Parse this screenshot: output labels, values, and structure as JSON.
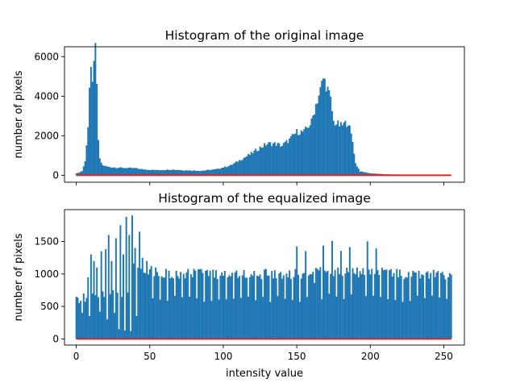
{
  "chart_data": [
    {
      "type": "bar",
      "title": "Histogram of the original image",
      "xlabel": "",
      "ylabel": "number of pixels",
      "xlim": [
        -8,
        264
      ],
      "ylim": [
        -350,
        6500
      ],
      "x_ticks": [
        0,
        50,
        100,
        150,
        200,
        250
      ],
      "x_tick_labels_shown": false,
      "y_ticks": [
        0,
        2000,
        4000,
        6000
      ],
      "y_tick_labels": [
        "0",
        "2000",
        "4000",
        "6000"
      ],
      "bin_width": 1,
      "bar_color": "#1f77b4",
      "profile": [
        [
          0,
          100
        ],
        [
          2,
          140
        ],
        [
          4,
          220
        ],
        [
          6,
          700
        ],
        [
          8,
          2500
        ],
        [
          9,
          4400
        ],
        [
          10,
          5100
        ],
        [
          11,
          4500
        ],
        [
          12,
          6100
        ],
        [
          13,
          6200
        ],
        [
          14,
          4400
        ],
        [
          15,
          1800
        ],
        [
          16,
          800
        ],
        [
          18,
          500
        ],
        [
          22,
          420
        ],
        [
          30,
          380
        ],
        [
          40,
          360
        ],
        [
          45,
          300
        ],
        [
          55,
          260
        ],
        [
          65,
          290
        ],
        [
          75,
          250
        ],
        [
          85,
          230
        ],
        [
          95,
          300
        ],
        [
          105,
          500
        ],
        [
          112,
          800
        ],
        [
          118,
          1050
        ],
        [
          125,
          1400
        ],
        [
          130,
          1600
        ],
        [
          135,
          1600
        ],
        [
          140,
          1500
        ],
        [
          145,
          1800
        ],
        [
          150,
          2200
        ],
        [
          155,
          2200
        ],
        [
          160,
          2700
        ],
        [
          163,
          3600
        ],
        [
          166,
          4300
        ],
        [
          168,
          4900
        ],
        [
          170,
          4600
        ],
        [
          173,
          3800
        ],
        [
          175,
          2700
        ],
        [
          180,
          2500
        ],
        [
          185,
          2700
        ],
        [
          188,
          1700
        ],
        [
          190,
          600
        ],
        [
          193,
          200
        ],
        [
          200,
          100
        ],
        [
          210,
          50
        ],
        [
          230,
          25
        ],
        [
          255,
          15
        ]
      ],
      "cdf_line": {
        "color": "#d62728",
        "from": 0,
        "to": 255,
        "y": 0
      }
    },
    {
      "type": "bar",
      "title": "Histogram of the equalized image",
      "xlabel": "intensity value",
      "ylabel": "number of pixels",
      "xlim": [
        -8,
        264
      ],
      "ylim": [
        -95,
        1990
      ],
      "x_ticks": [
        0,
        50,
        100,
        150,
        200,
        250
      ],
      "x_tick_labels": [
        "0",
        "50",
        "100",
        "150",
        "200",
        "250"
      ],
      "y_ticks": [
        0,
        500,
        1000,
        1500
      ],
      "y_tick_labels": [
        "0",
        "500",
        "1000",
        "1500"
      ],
      "bin_width": 1,
      "bar_color": "#1f77b4",
      "profile": [
        [
          0,
          650
        ],
        [
          5,
          600
        ],
        [
          10,
          650
        ],
        [
          15,
          650
        ],
        [
          20,
          700
        ],
        [
          25,
          700
        ],
        [
          30,
          700
        ],
        [
          35,
          700
        ],
        [
          40,
          1200
        ],
        [
          45,
          1100
        ],
        [
          50,
          1050
        ],
        [
          60,
          1000
        ],
        [
          80,
          1000
        ],
        [
          100,
          1000
        ],
        [
          120,
          1000
        ],
        [
          140,
          1000
        ],
        [
          160,
          1000
        ],
        [
          170,
          1050
        ],
        [
          180,
          1050
        ],
        [
          200,
          1050
        ],
        [
          220,
          1000
        ],
        [
          240,
          1000
        ],
        [
          255,
          950
        ]
      ],
      "spikes": [
        [
          2,
          550
        ],
        [
          5,
          700
        ],
        [
          8,
          950
        ],
        [
          10,
          1300
        ],
        [
          12,
          1200
        ],
        [
          14,
          1100
        ],
        [
          17,
          1350
        ],
        [
          20,
          1380
        ],
        [
          22,
          1600
        ],
        [
          24,
          1200
        ],
        [
          27,
          1550
        ],
        [
          30,
          1750
        ],
        [
          32,
          1300
        ],
        [
          34,
          1880
        ],
        [
          36,
          1600
        ],
        [
          38,
          1900
        ],
        [
          40,
          1400
        ],
        [
          43,
          1650
        ],
        [
          45,
          1250
        ],
        [
          48,
          1200
        ]
      ],
      "gaps": [
        [
          4,
          400
        ],
        [
          9,
          350
        ],
        [
          16,
          420
        ],
        [
          21,
          300
        ],
        [
          26,
          400
        ],
        [
          29,
          150
        ],
        [
          33,
          130
        ],
        [
          37,
          120
        ],
        [
          41,
          350
        ]
      ],
      "cdf_line": {
        "color": "#d62728",
        "from": 0,
        "to": 255,
        "y": 0
      }
    }
  ]
}
